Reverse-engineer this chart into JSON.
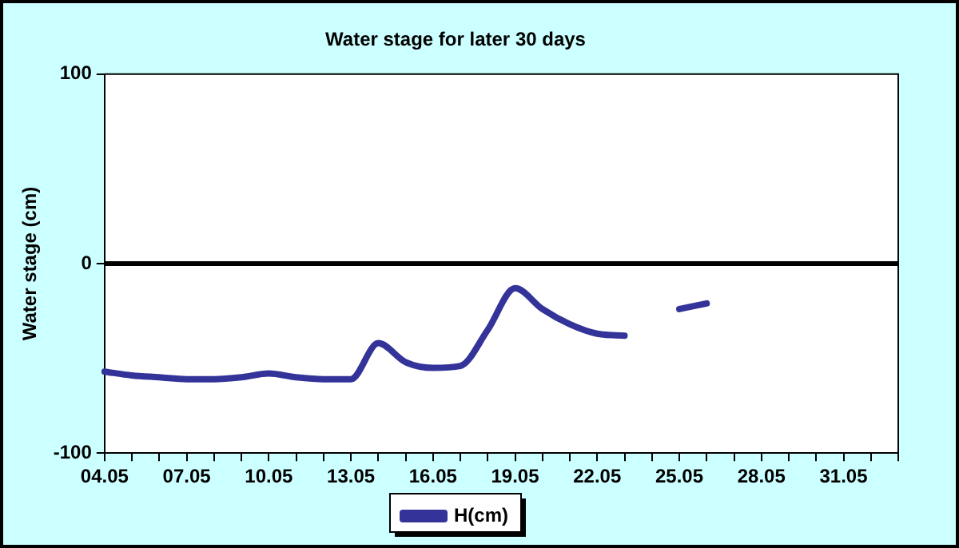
{
  "chart_data": {
    "type": "line",
    "title": "Water stage for later 30 days",
    "ylabel": "Water stage (cm)",
    "categories": [
      "04.05",
      null,
      null,
      "07.05",
      null,
      null,
      "10.05",
      null,
      null,
      "13.05",
      null,
      null,
      "16.05",
      null,
      null,
      "19.05",
      null,
      null,
      "22.05",
      null,
      null,
      "25.05",
      null,
      null,
      "28.05",
      null,
      null,
      "31.05",
      null,
      null
    ],
    "series": [
      {
        "name": "H(cm)",
        "color": "#333399",
        "values": [
          -57,
          -59,
          -60,
          -61,
          -61,
          -60,
          -58,
          -60,
          -61,
          -61,
          -42,
          -52,
          -55,
          -54,
          -35,
          -13,
          -24,
          -32,
          -37,
          -38,
          null,
          -24,
          -21,
          null,
          null,
          null,
          null,
          null,
          null,
          null
        ]
      }
    ],
    "ylim": [
      -100,
      100
    ],
    "yticks": [
      -100,
      0,
      100
    ],
    "grid": false,
    "legend": "bottom",
    "marker": "none",
    "line_style": "solid",
    "ref_lines": [
      {
        "axis": "y",
        "value": 0,
        "color": "#000000"
      }
    ]
  }
}
